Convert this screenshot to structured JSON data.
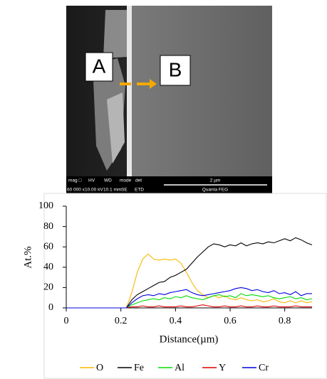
{
  "sem_image": {
    "label_a": "A",
    "label_b": "B",
    "info_headers": [
      "mag □",
      "HV",
      "WD",
      "mode",
      "det"
    ],
    "info_values": [
      "60 000 x",
      "10.00 kV",
      "10.1 mm",
      "SE",
      "ETD"
    ],
    "scale_bar": "2 µm",
    "instrument": "Quanta FEG"
  },
  "chart_data": {
    "type": "line",
    "x_label": "Distance(µm)",
    "y_label": "At.%",
    "x": [
      0,
      0.02,
      0.04,
      0.06,
      0.08,
      0.1,
      0.12,
      0.14,
      0.16,
      0.18,
      0.2,
      0.22,
      0.24,
      0.26,
      0.28,
      0.3,
      0.32,
      0.34,
      0.36,
      0.38,
      0.4,
      0.42,
      0.44,
      0.46,
      0.48,
      0.5,
      0.52,
      0.54,
      0.56,
      0.58,
      0.6,
      0.62,
      0.64,
      0.66,
      0.68,
      0.7,
      0.72,
      0.74,
      0.76,
      0.78,
      0.8,
      0.82,
      0.84,
      0.86,
      0.88,
      0.9
    ],
    "series": [
      {
        "name": "O",
        "color": "#f5b800",
        "values": [
          0,
          0,
          0,
          0,
          0,
          0,
          0,
          0,
          0,
          0,
          0,
          0,
          15,
          35,
          48,
          53,
          48,
          47,
          48,
          47,
          48,
          44,
          35,
          25,
          17,
          13,
          10,
          12,
          10,
          12,
          9,
          8,
          10,
          8,
          7,
          8,
          6,
          7,
          9,
          6,
          5,
          7,
          5,
          7,
          5,
          6
        ]
      },
      {
        "name": "Fe",
        "color": "#000000",
        "values": [
          0,
          0,
          0,
          0,
          0,
          0,
          0,
          0,
          0,
          0,
          0,
          0,
          8,
          13,
          16,
          19,
          22,
          25,
          26,
          30,
          32,
          35,
          38,
          44,
          50,
          55,
          60,
          63,
          62,
          60,
          62,
          61,
          64,
          61,
          63,
          64,
          63,
          65,
          64,
          66,
          68,
          66,
          69,
          67,
          64,
          62
        ]
      },
      {
        "name": "Al",
        "color": "#00dd00",
        "values": [
          0,
          0,
          0,
          0,
          0,
          0,
          0,
          0,
          0,
          0,
          0,
          0,
          3,
          5,
          7,
          8,
          9,
          8,
          10,
          9,
          11,
          10,
          12,
          10,
          9,
          8,
          10,
          12,
          13,
          11,
          12,
          10,
          14,
          12,
          13,
          12,
          11,
          12,
          10,
          9,
          10,
          11,
          9,
          10,
          8,
          9
        ]
      },
      {
        "name": "Y",
        "color": "#e00000",
        "values": [
          0,
          0,
          0,
          0,
          0,
          0,
          0,
          0,
          0,
          0,
          0,
          0,
          1,
          1,
          2,
          1,
          1,
          2,
          1,
          1,
          1,
          2,
          1,
          1,
          2,
          3,
          2,
          1,
          1,
          2,
          1,
          1,
          2,
          1,
          1,
          2,
          1,
          1,
          2,
          1,
          1,
          1,
          2,
          1,
          1,
          1
        ]
      },
      {
        "name": "Cr",
        "color": "#0000e0",
        "values": [
          0,
          0,
          0,
          0,
          0,
          0,
          0,
          0,
          0,
          0,
          0,
          0,
          5,
          9,
          12,
          13,
          12,
          14,
          13,
          15,
          16,
          17,
          18,
          15,
          13,
          12,
          13,
          14,
          15,
          16,
          17,
          19,
          20,
          19,
          17,
          18,
          16,
          15,
          17,
          14,
          15,
          13,
          16,
          12,
          14,
          14
        ]
      }
    ],
    "xlim": [
      0,
      0.9
    ],
    "xticks": [
      0,
      0.2,
      0.4,
      0.6,
      0.8
    ],
    "ylim": [
      0,
      100
    ],
    "yticks": [
      0,
      20,
      40,
      60,
      80,
      100
    ],
    "legend": "bottom"
  }
}
